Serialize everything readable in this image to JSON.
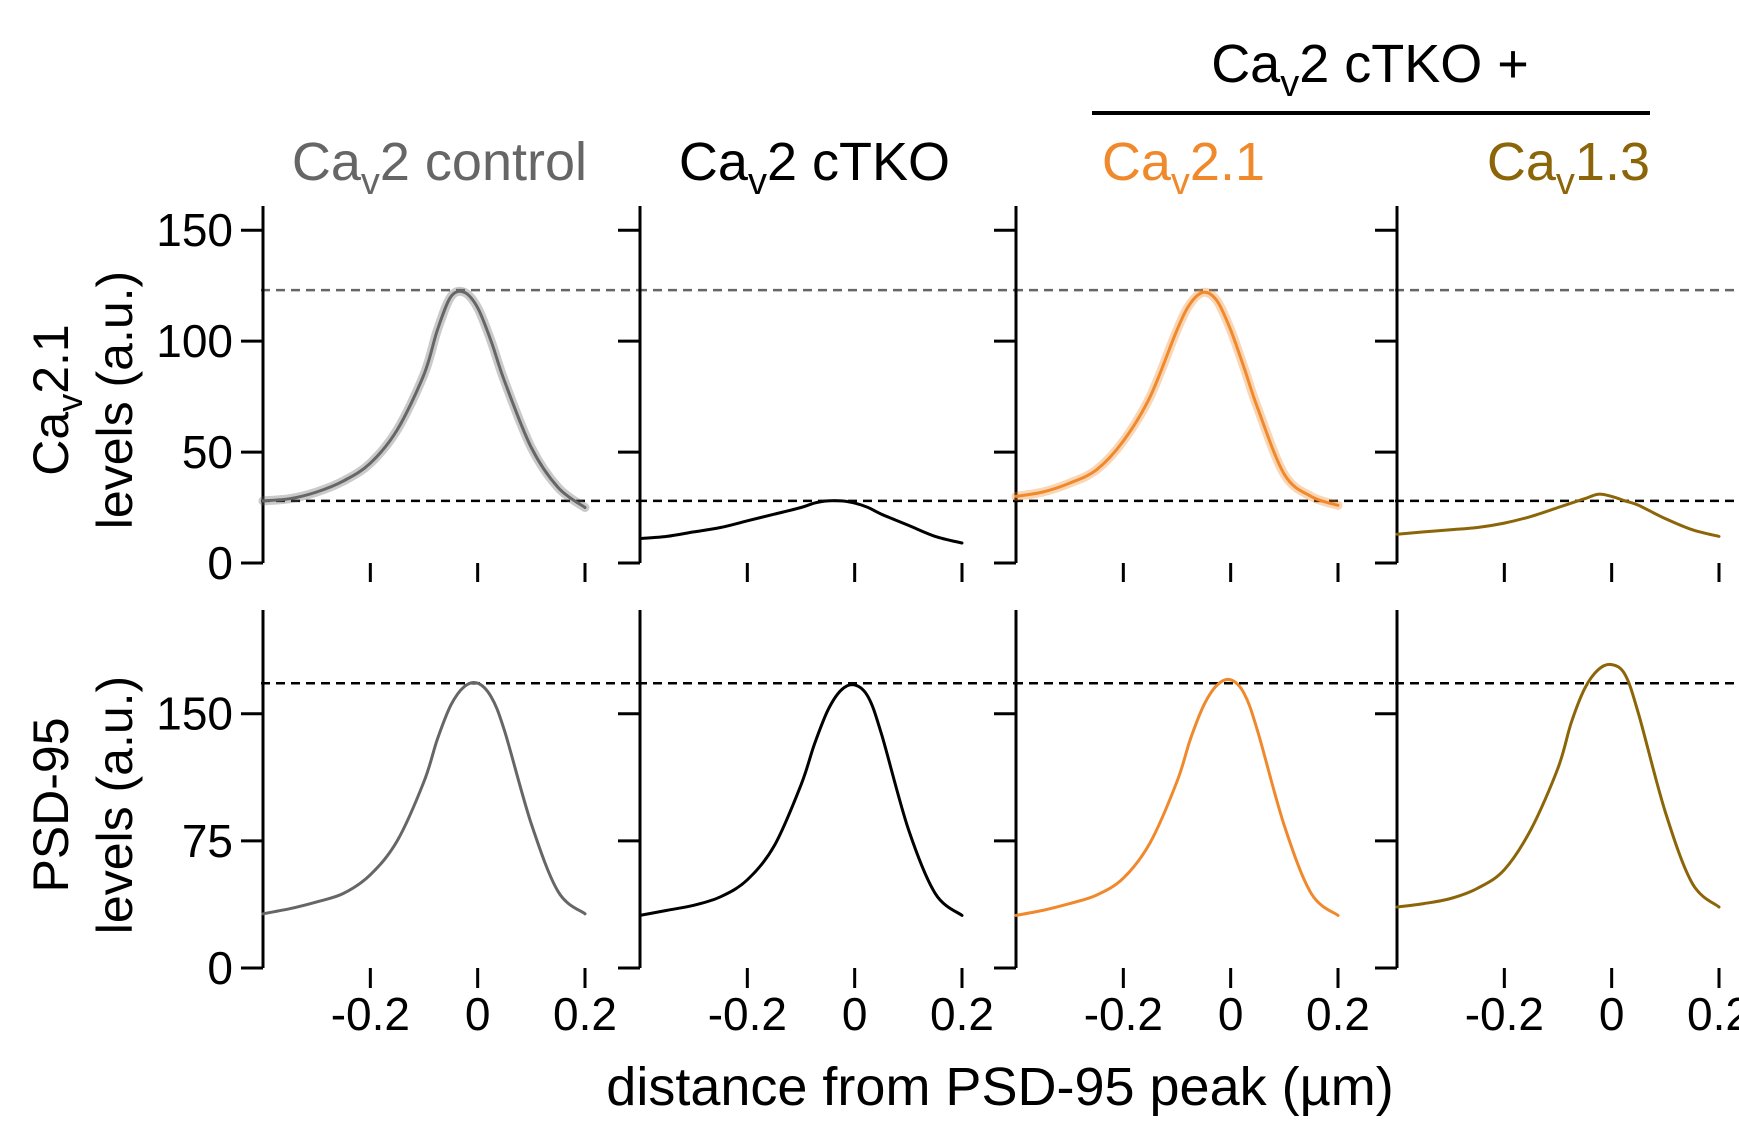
{
  "figure": {
    "group_header": {
      "base": "Ca",
      "sub": "v",
      "rest": "2 cTKO +"
    },
    "columns": [
      {
        "base": "Ca",
        "sub": "v",
        "rest": "2 control",
        "color": "#666666"
      },
      {
        "base": "Ca",
        "sub": "v",
        "rest": "2 cTKO",
        "color": "#000000"
      },
      {
        "base": "Ca",
        "sub": "v",
        "rest": "2.1",
        "color": "#f0892c"
      },
      {
        "base": "Ca",
        "sub": "v",
        "rest": "1.3",
        "color": "#8b6508"
      }
    ],
    "row_labels": [
      {
        "line1_base": "Ca",
        "line1_sub": "v",
        "line1_rest": "2.1",
        "line2": "levels (a.u.)"
      },
      {
        "line1_base": "PSD-95",
        "line1_sub": "",
        "line1_rest": "",
        "line2": "levels (a.u.)"
      }
    ],
    "x_axis_label": "distance from PSD-95 peak (µm)"
  },
  "chart_data": [
    {
      "type": "line",
      "row": "Cav2.1",
      "xlim": [
        -0.4,
        0.2
      ],
      "ylim": [
        0,
        160
      ],
      "yticks": [
        0,
        50,
        100,
        150
      ],
      "xticks": [
        -0.2,
        0,
        0.2
      ],
      "xtick_labels": [
        "-0.2",
        "0",
        "0.2"
      ],
      "reference_lines": [
        {
          "y": 123,
          "color": "#666666",
          "style": "dashed"
        },
        {
          "y": 28,
          "color": "#000000",
          "style": "dashed"
        }
      ],
      "x": [
        -0.4,
        -0.35,
        -0.3,
        -0.25,
        -0.2,
        -0.15,
        -0.1,
        -0.075,
        -0.05,
        -0.025,
        0,
        0.025,
        0.05,
        0.1,
        0.15,
        0.2
      ],
      "series": [
        {
          "name": "Cav2 control",
          "color": "#666666",
          "band": true,
          "values": [
            28,
            29,
            32,
            37,
            45,
            60,
            85,
            105,
            120,
            122,
            115,
            100,
            82,
            52,
            34,
            25
          ]
        },
        {
          "name": "Cav2 cTKO",
          "color": "#000000",
          "band": false,
          "values": [
            11,
            12,
            14,
            16,
            19,
            22,
            25,
            27,
            28,
            28,
            27,
            25,
            22,
            17,
            12,
            9
          ]
        },
        {
          "name": "Cav2.1",
          "color": "#f0892c",
          "band": true,
          "values": [
            30,
            32,
            36,
            42,
            55,
            75,
            105,
            117,
            122,
            118,
            105,
            88,
            70,
            40,
            30,
            26
          ]
        },
        {
          "name": "Cav1.3",
          "color": "#8b6508",
          "band": false,
          "values": [
            13,
            14,
            15,
            16,
            18,
            21,
            25,
            27,
            29,
            31,
            30,
            28,
            26,
            20,
            15,
            12
          ]
        }
      ]
    },
    {
      "type": "line",
      "row": "PSD-95",
      "xlim": [
        -0.4,
        0.2
      ],
      "ylim": [
        0,
        210
      ],
      "yticks": [
        0,
        75,
        150
      ],
      "xticks": [
        -0.2,
        0,
        0.2
      ],
      "xtick_labels": [
        "-0.2",
        "0",
        "0.2"
      ],
      "reference_lines": [
        {
          "y": 168,
          "color": "#000000",
          "style": "dashed"
        }
      ],
      "x": [
        -0.4,
        -0.35,
        -0.3,
        -0.25,
        -0.2,
        -0.15,
        -0.1,
        -0.075,
        -0.05,
        -0.025,
        0,
        0.025,
        0.05,
        0.1,
        0.15,
        0.2
      ],
      "series": [
        {
          "name": "Cav2 control",
          "color": "#666666",
          "band": false,
          "values": [
            32,
            35,
            39,
            44,
            55,
            75,
            110,
            135,
            155,
            166,
            168,
            160,
            140,
            85,
            45,
            32
          ]
        },
        {
          "name": "Cav2 cTKO",
          "color": "#000000",
          "band": false,
          "values": [
            31,
            34,
            37,
            42,
            52,
            72,
            108,
            132,
            152,
            164,
            167,
            160,
            138,
            82,
            44,
            31
          ]
        },
        {
          "name": "Cav2.1",
          "color": "#f0892c",
          "band": false,
          "values": [
            31,
            34,
            38,
            43,
            53,
            74,
            110,
            135,
            155,
            167,
            170,
            162,
            140,
            84,
            44,
            31
          ]
        },
        {
          "name": "Cav1.3",
          "color": "#8b6508",
          "band": false,
          "values": [
            36,
            38,
            41,
            47,
            58,
            82,
            118,
            145,
            165,
            176,
            179,
            173,
            150,
            92,
            50,
            36
          ]
        }
      ]
    }
  ]
}
